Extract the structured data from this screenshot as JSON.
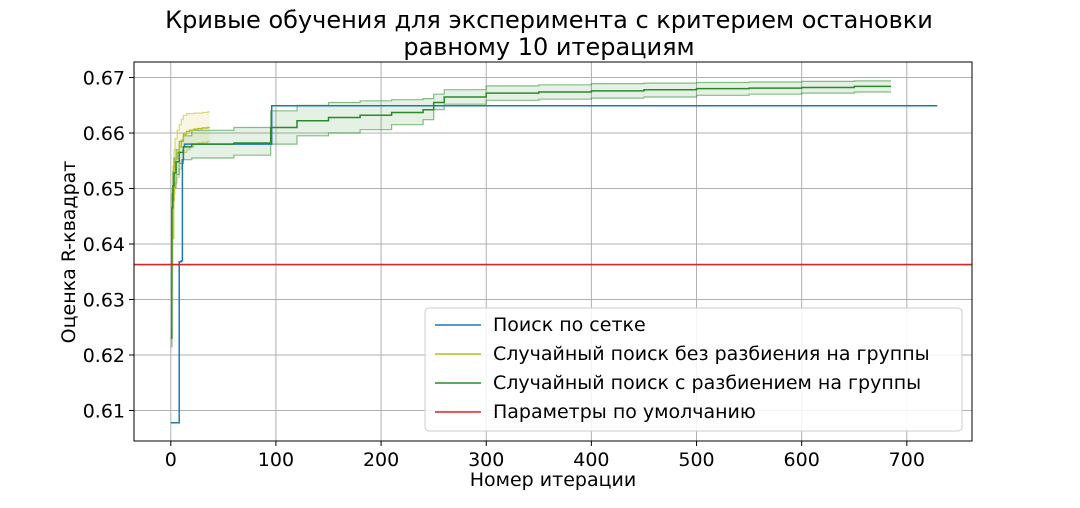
{
  "chart_data": {
    "type": "line",
    "title_line1": "Кривые обучения для эксперимента с критерием остановки",
    "title_line2": "равному 10 итерациям",
    "xlabel": "Номер итерации",
    "ylabel": "Оценка R-квадрат",
    "xlim": [
      -35,
      762
    ],
    "ylim": [
      0.6045,
      0.6728
    ],
    "xticks": [
      0,
      100,
      200,
      300,
      400,
      500,
      600,
      700
    ],
    "yticks": [
      0.61,
      0.62,
      0.63,
      0.64,
      0.65,
      0.66,
      0.67
    ],
    "ytick_labels": [
      "0.61",
      "0.62",
      "0.63",
      "0.64",
      "0.65",
      "0.66",
      "0.67"
    ],
    "grid": true,
    "legend_position": "lower-right",
    "series": [
      {
        "name": "Поиск по сетке",
        "color": "#1f77b4",
        "step": true,
        "x": [
          0,
          7,
          8,
          10,
          11,
          12,
          13,
          95,
          96,
          729
        ],
        "y": [
          0.6078,
          0.6078,
          0.6368,
          0.637,
          0.6552,
          0.6575,
          0.658,
          0.658,
          0.6649,
          0.6649
        ]
      },
      {
        "name": "Случайный поиск без разбиения на группы",
        "color": "#bcbd22",
        "step": true,
        "x": [
          0,
          1,
          2,
          3,
          4,
          6,
          8,
          10,
          12,
          15,
          18,
          22,
          26,
          30,
          35,
          37
        ],
        "y": [
          0.6315,
          0.641,
          0.6478,
          0.6532,
          0.6552,
          0.6565,
          0.6575,
          0.6587,
          0.6598,
          0.6603,
          0.6605,
          0.6607,
          0.6608,
          0.6609,
          0.661,
          0.661
        ],
        "upper": [
          0.6355,
          0.65,
          0.654,
          0.657,
          0.659,
          0.6605,
          0.6615,
          0.6625,
          0.6632,
          0.6635,
          0.6635,
          0.6636,
          0.6636,
          0.6637,
          0.6638,
          0.6638
        ],
        "lower": [
          0.6275,
          0.636,
          0.641,
          0.649,
          0.651,
          0.652,
          0.6535,
          0.655,
          0.6565,
          0.657,
          0.6575,
          0.658,
          0.6582,
          0.6583,
          0.6585,
          0.6585
        ]
      },
      {
        "name": "Случайный поиск с разбиением на группы",
        "color": "#2a8a2a",
        "step": true,
        "x": [
          0,
          1,
          2,
          3,
          5,
          8,
          12,
          20,
          60,
          95,
          120,
          150,
          180,
          210,
          240,
          250,
          260,
          300,
          350,
          400,
          450,
          500,
          550,
          600,
          650,
          685
        ],
        "y": [
          0.623,
          0.6465,
          0.6505,
          0.6528,
          0.6548,
          0.6565,
          0.6575,
          0.658,
          0.6582,
          0.661,
          0.6622,
          0.6628,
          0.6632,
          0.6637,
          0.6642,
          0.6655,
          0.6665,
          0.6672,
          0.6674,
          0.6676,
          0.6678,
          0.668,
          0.6681,
          0.6682,
          0.6684,
          0.6684
        ],
        "upper": [
          0.6245,
          0.649,
          0.653,
          0.6555,
          0.657,
          0.6585,
          0.6595,
          0.6605,
          0.661,
          0.664,
          0.665,
          0.6655,
          0.6658,
          0.666,
          0.6662,
          0.667,
          0.6678,
          0.6685,
          0.6687,
          0.6689,
          0.669,
          0.6691,
          0.6692,
          0.6693,
          0.6694,
          0.6694
        ],
        "lower": [
          0.6215,
          0.644,
          0.648,
          0.6502,
          0.6525,
          0.6545,
          0.6552,
          0.6555,
          0.656,
          0.658,
          0.6595,
          0.66,
          0.6606,
          0.6615,
          0.6624,
          0.6642,
          0.6652,
          0.6659,
          0.6661,
          0.6663,
          0.6665,
          0.6668,
          0.667,
          0.6672,
          0.6674,
          0.6674
        ]
      },
      {
        "name": "Параметры по умолчанию",
        "color": "#d62728",
        "hline": true,
        "y": 0.6363
      }
    ]
  }
}
